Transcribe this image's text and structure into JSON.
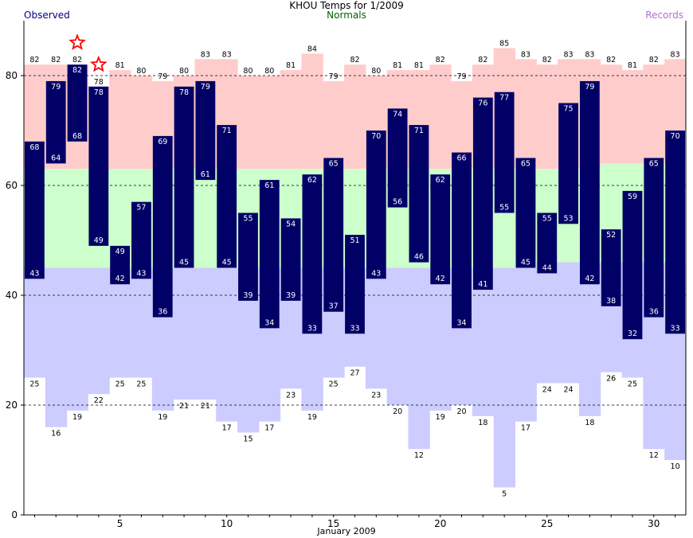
{
  "title": "KHOU Temps for 1/2009",
  "legend": {
    "observed": "Observed",
    "normals": "Normals",
    "records": "Records"
  },
  "colors": {
    "observed": "#000066",
    "normal_band": "#ccffcc",
    "record_high_band": "#ffcccc",
    "record_low_band": "#ccccff",
    "record_marker": "#ff0000"
  },
  "chart_data": {
    "type": "bar",
    "title": "KHOU Temps for 1/2009",
    "xlabel": "January 2009",
    "ylabel": "",
    "ylim": [
      0,
      90
    ],
    "xlim": [
      0.5,
      31.5
    ],
    "yticks": [
      0,
      20,
      40,
      60,
      80
    ],
    "xticks": [
      5,
      10,
      15,
      20,
      25,
      30
    ],
    "grid": "horizontal dashed at 20, 40, 60, 80",
    "days": [
      1,
      2,
      3,
      4,
      5,
      6,
      7,
      8,
      9,
      10,
      11,
      12,
      13,
      14,
      15,
      16,
      17,
      18,
      19,
      20,
      21,
      22,
      23,
      24,
      25,
      26,
      27,
      28,
      29,
      30,
      31
    ],
    "observed_high": [
      68,
      79,
      82,
      78,
      49,
      57,
      69,
      78,
      79,
      71,
      55,
      61,
      54,
      62,
      65,
      51,
      70,
      74,
      71,
      62,
      66,
      76,
      77,
      65,
      55,
      75,
      79,
      52,
      59,
      65,
      70
    ],
    "observed_low": [
      43,
      64,
      68,
      49,
      42,
      43,
      36,
      45,
      61,
      45,
      39,
      34,
      39,
      33,
      37,
      33,
      43,
      56,
      46,
      42,
      34,
      41,
      55,
      45,
      44,
      53,
      42,
      38,
      32,
      36,
      33
    ],
    "normal_high": [
      63,
      63,
      63,
      63,
      63,
      63,
      63,
      63,
      63,
      63,
      63,
      63,
      63,
      63,
      63,
      63,
      63,
      63,
      63,
      63,
      63,
      63,
      63,
      63,
      63,
      63,
      63,
      64,
      64,
      64,
      64
    ],
    "normal_low": [
      45,
      45,
      45,
      45,
      45,
      45,
      45,
      45,
      45,
      45,
      45,
      45,
      45,
      45,
      45,
      45,
      45,
      45,
      45,
      45,
      45,
      45,
      45,
      45,
      46,
      46,
      46,
      46,
      46,
      46,
      46
    ],
    "record_high": [
      82,
      82,
      82,
      78,
      81,
      80,
      79,
      80,
      83,
      83,
      80,
      80,
      81,
      84,
      79,
      82,
      80,
      81,
      81,
      82,
      79,
      82,
      85,
      83,
      82,
      83,
      83,
      82,
      81,
      82,
      83
    ],
    "record_low": [
      25,
      16,
      19,
      22,
      25,
      25,
      19,
      21,
      21,
      17,
      15,
      17,
      23,
      19,
      25,
      27,
      23,
      20,
      12,
      19,
      20,
      18,
      5,
      17,
      24,
      24,
      18,
      26,
      25,
      12,
      10
    ],
    "record_set_days": [
      3,
      4
    ]
  }
}
